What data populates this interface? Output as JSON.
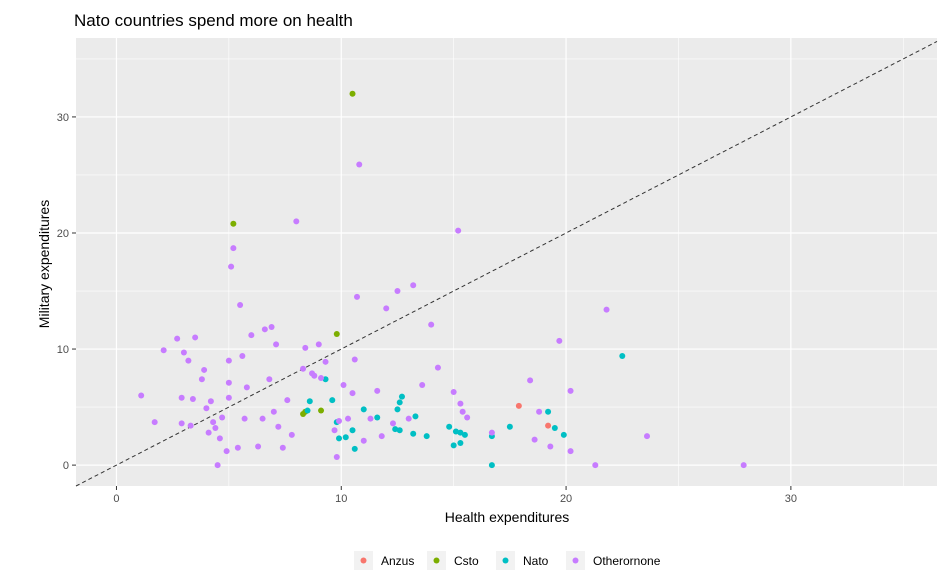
{
  "chart_data": {
    "type": "scatter",
    "title": "Nato countries spend more on health",
    "xlabel": "Health expenditures",
    "ylabel": "Military expenditures",
    "xlim": [
      -1.8,
      36.5
    ],
    "ylim": [
      -1.8,
      36.8
    ],
    "xticks": [
      0,
      10,
      20,
      30
    ],
    "yticks": [
      0,
      10,
      20,
      30
    ],
    "xtick_labels": [
      "0",
      "10",
      "20",
      "30"
    ],
    "ytick_labels": [
      "0",
      "10",
      "20",
      "30"
    ],
    "grid": true,
    "reference_line": {
      "type": "identity",
      "style": "dashed",
      "color": "#333333"
    },
    "legend_position": "bottom",
    "series": [
      {
        "name": "Anzus",
        "color": "#F8766D",
        "points": [
          [
            17.9,
            5.1
          ],
          [
            19.2,
            3.4
          ]
        ]
      },
      {
        "name": "Csto",
        "color": "#7CAE00",
        "points": [
          [
            10.5,
            32.0
          ],
          [
            5.2,
            20.8
          ],
          [
            9.8,
            11.3
          ],
          [
            8.4,
            4.6
          ],
          [
            8.3,
            4.4
          ],
          [
            9.1,
            4.7
          ]
        ]
      },
      {
        "name": "Nato",
        "color": "#00BFC4",
        "points": [
          [
            22.5,
            9.4
          ],
          [
            19.2,
            4.6
          ],
          [
            19.5,
            3.2
          ],
          [
            19.9,
            2.6
          ],
          [
            17.5,
            3.3
          ],
          [
            16.7,
            2.5
          ],
          [
            16.7,
            0.0
          ],
          [
            15.5,
            2.6
          ],
          [
            15.3,
            2.8
          ],
          [
            15.1,
            2.9
          ],
          [
            14.8,
            3.3
          ],
          [
            15.3,
            1.9
          ],
          [
            15.0,
            1.7
          ],
          [
            13.8,
            2.5
          ],
          [
            13.3,
            4.2
          ],
          [
            13.2,
            2.7
          ],
          [
            12.7,
            5.9
          ],
          [
            12.6,
            5.4
          ],
          [
            12.5,
            4.8
          ],
          [
            12.4,
            3.1
          ],
          [
            12.6,
            3.0
          ],
          [
            11.6,
            4.1
          ],
          [
            11.0,
            4.8
          ],
          [
            10.5,
            3.0
          ],
          [
            10.6,
            1.4
          ],
          [
            10.2,
            2.4
          ],
          [
            9.9,
            2.3
          ],
          [
            9.8,
            3.7
          ],
          [
            9.6,
            5.6
          ],
          [
            9.3,
            7.4
          ],
          [
            8.6,
            5.5
          ],
          [
            8.5,
            4.7
          ]
        ]
      },
      {
        "name": "Otherornone",
        "color": "#C77CFF",
        "points": [
          [
            27.9,
            0.0
          ],
          [
            23.6,
            2.5
          ],
          [
            21.8,
            13.4
          ],
          [
            21.3,
            0.0
          ],
          [
            20.2,
            6.4
          ],
          [
            20.2,
            1.2
          ],
          [
            19.7,
            10.7
          ],
          [
            19.3,
            1.6
          ],
          [
            18.8,
            4.6
          ],
          [
            18.6,
            2.2
          ],
          [
            18.4,
            7.3
          ],
          [
            16.7,
            2.8
          ],
          [
            15.6,
            4.1
          ],
          [
            15.4,
            4.6
          ],
          [
            15.3,
            5.3
          ],
          [
            15.2,
            20.2
          ],
          [
            15.0,
            6.3
          ],
          [
            14.3,
            8.4
          ],
          [
            14.0,
            12.1
          ],
          [
            13.6,
            6.9
          ],
          [
            13.2,
            15.5
          ],
          [
            13.0,
            4.0
          ],
          [
            12.5,
            15.0
          ],
          [
            12.3,
            3.6
          ],
          [
            12.0,
            13.5
          ],
          [
            11.8,
            2.5
          ],
          [
            11.6,
            6.4
          ],
          [
            11.3,
            4.0
          ],
          [
            11.0,
            2.1
          ],
          [
            10.8,
            25.9
          ],
          [
            10.7,
            14.5
          ],
          [
            10.6,
            9.1
          ],
          [
            10.5,
            6.2
          ],
          [
            10.3,
            4.0
          ],
          [
            10.1,
            6.9
          ],
          [
            9.9,
            3.8
          ],
          [
            9.7,
            3.0
          ],
          [
            9.8,
            0.7
          ],
          [
            9.3,
            8.9
          ],
          [
            9.1,
            7.5
          ],
          [
            9.0,
            10.4
          ],
          [
            8.8,
            7.7
          ],
          [
            8.7,
            7.9
          ],
          [
            8.4,
            10.1
          ],
          [
            8.3,
            8.3
          ],
          [
            8.0,
            21.0
          ],
          [
            7.8,
            2.6
          ],
          [
            7.6,
            5.6
          ],
          [
            7.4,
            1.5
          ],
          [
            7.2,
            3.3
          ],
          [
            7.1,
            10.4
          ],
          [
            7.0,
            4.6
          ],
          [
            6.9,
            11.9
          ],
          [
            6.8,
            7.4
          ],
          [
            6.6,
            11.7
          ],
          [
            6.5,
            4.0
          ],
          [
            6.3,
            1.6
          ],
          [
            6.0,
            11.2
          ],
          [
            5.8,
            6.7
          ],
          [
            5.7,
            4.0
          ],
          [
            5.6,
            9.4
          ],
          [
            5.5,
            13.8
          ],
          [
            5.4,
            1.5
          ],
          [
            5.2,
            18.7
          ],
          [
            5.1,
            17.1
          ],
          [
            5.0,
            9.0
          ],
          [
            5.0,
            7.1
          ],
          [
            5.0,
            5.8
          ],
          [
            4.9,
            1.2
          ],
          [
            4.7,
            4.1
          ],
          [
            4.6,
            2.3
          ],
          [
            4.5,
            0.0
          ],
          [
            4.3,
            3.7
          ],
          [
            4.2,
            5.5
          ],
          [
            4.1,
            2.8
          ],
          [
            4.0,
            4.9
          ],
          [
            3.9,
            8.2
          ],
          [
            3.8,
            7.4
          ],
          [
            3.5,
            11.0
          ],
          [
            3.4,
            5.7
          ],
          [
            3.3,
            3.4
          ],
          [
            3.0,
            9.7
          ],
          [
            2.9,
            3.6
          ],
          [
            2.7,
            10.9
          ],
          [
            2.1,
            9.9
          ],
          [
            1.7,
            3.7
          ],
          [
            1.1,
            6.0
          ],
          [
            3.2,
            9.0
          ],
          [
            2.9,
            5.8
          ],
          [
            4.4,
            3.2
          ]
        ]
      }
    ]
  }
}
